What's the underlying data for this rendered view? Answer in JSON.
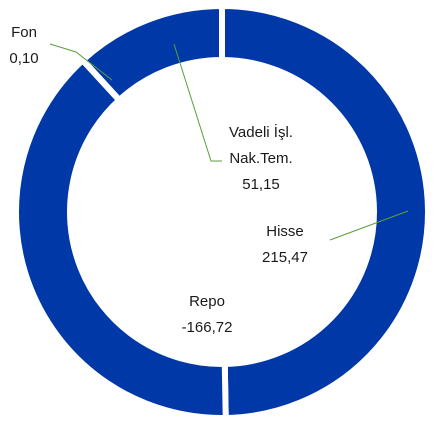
{
  "chart_data": {
    "type": "donut",
    "categories": [
      "Hisse",
      "Repo",
      "Fon",
      "Vadeli İşl.\nNak.Tem."
    ],
    "values": [
      215.47,
      -166.72,
      0.1,
      51.15
    ],
    "value_labels": [
      "215,47",
      "-166,72",
      "0,10",
      "51,15"
    ],
    "color": "#0038a8"
  }
}
